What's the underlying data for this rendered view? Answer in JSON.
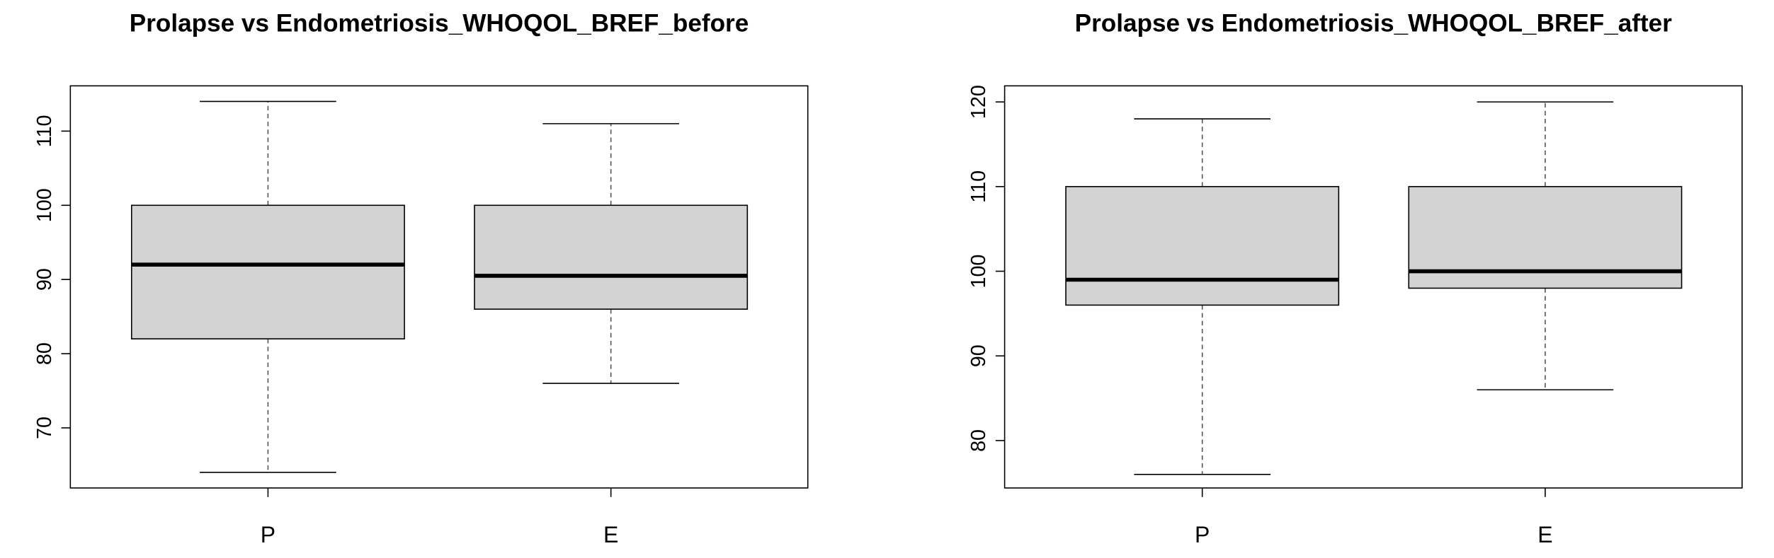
{
  "chart_data": [
    {
      "type": "box",
      "title": "Prolapse vs Endometriosis_WHOQOL_BREF_before",
      "categories": [
        "P",
        "E"
      ],
      "boxes": [
        {
          "min": 64,
          "q1": 82,
          "median": 92,
          "q3": 100,
          "max": 114
        },
        {
          "min": 76,
          "q1": 86,
          "median": 90.5,
          "q3": 100,
          "max": 111
        }
      ],
      "color": "#d3d3d3",
      "ylim": [
        61.9,
        116.1
      ],
      "yticks": [
        70,
        80,
        90,
        100,
        110
      ]
    },
    {
      "type": "box",
      "title": "Prolapse vs Endometriosis_WHOQOL_BREF_after",
      "categories": [
        "P",
        "E"
      ],
      "boxes": [
        {
          "min": 76,
          "q1": 96,
          "median": 99,
          "q3": 110,
          "max": 118
        },
        {
          "min": 86,
          "q1": 98,
          "median": 100,
          "q3": 110,
          "max": 120
        }
      ],
      "color": "#d3d3d3",
      "ylim": [
        74.4,
        121.9
      ],
      "yticks": [
        80,
        90,
        100,
        110,
        120
      ]
    }
  ]
}
